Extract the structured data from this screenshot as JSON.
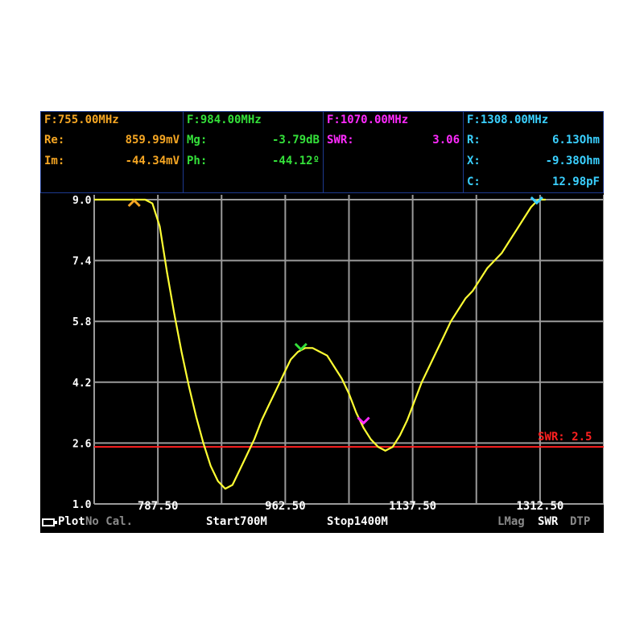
{
  "markers": [
    {
      "id": "m1",
      "color": "#f5a623",
      "freq": "F:755.00MHz",
      "rows": [
        {
          "label": "Re:",
          "value": "859.99mV"
        },
        {
          "label": "Im:",
          "value": "-44.34mV"
        }
      ]
    },
    {
      "id": "m2",
      "color": "#34e03a",
      "freq": "F:984.00MHz",
      "rows": [
        {
          "label": "Mg:",
          "value": "-3.79dB"
        },
        {
          "label": "Ph:",
          "value": "-44.12º"
        }
      ]
    },
    {
      "id": "m3",
      "color": "#ff2bff",
      "freq": "F:1070.00MHz",
      "rows": [
        {
          "label": "SWR:",
          "value": "3.06"
        }
      ]
    },
    {
      "id": "m4",
      "color": "#3ad0ff",
      "freq": "F:1308.00MHz",
      "rows": [
        {
          "label": "R:",
          "value": "6.13Ohm"
        },
        {
          "label": "X:",
          "value": "-9.38Ohm"
        },
        {
          "label": "C:",
          "value": "12.98pF"
        }
      ]
    }
  ],
  "chart_data": {
    "type": "line",
    "xlim": [
      700,
      1400
    ],
    "ylim": [
      1.0,
      9.0
    ],
    "x_ticks": [
      "787.50",
      "962.50",
      "1137.50",
      "1312.50"
    ],
    "y_ticks": [
      "1.0",
      "2.6",
      "4.2",
      "5.8",
      "7.4",
      "9.0"
    ],
    "grid": true,
    "trace_color": "#ffff33",
    "series": [
      {
        "x": [
          700,
          720,
          740,
          760,
          770,
          780,
          790,
          800,
          810,
          820,
          830,
          840,
          850,
          860,
          870,
          880,
          890,
          900,
          910,
          920,
          930,
          940,
          950,
          960,
          970,
          980,
          990,
          1000,
          1010,
          1020,
          1030,
          1040,
          1050,
          1060,
          1070,
          1080,
          1090,
          1100,
          1110,
          1120,
          1130,
          1140,
          1150,
          1160,
          1170,
          1180,
          1190,
          1200,
          1210,
          1220,
          1230,
          1240,
          1250,
          1260,
          1270,
          1280,
          1290,
          1300,
          1310,
          1320
        ],
        "y": [
          9.0,
          9.0,
          9.0,
          9.0,
          9.0,
          8.9,
          8.3,
          7.1,
          6.0,
          5.0,
          4.1,
          3.3,
          2.6,
          2.0,
          1.6,
          1.4,
          1.5,
          1.9,
          2.3,
          2.7,
          3.2,
          3.6,
          4.0,
          4.4,
          4.8,
          5.0,
          5.1,
          5.1,
          5.0,
          4.9,
          4.6,
          4.3,
          3.9,
          3.4,
          3.0,
          2.7,
          2.5,
          2.4,
          2.5,
          2.8,
          3.2,
          3.7,
          4.2,
          4.6,
          5.0,
          5.4,
          5.8,
          6.1,
          6.4,
          6.6,
          6.9,
          7.2,
          7.4,
          7.6,
          7.9,
          8.2,
          8.5,
          8.8,
          9.0,
          9.0
        ]
      }
    ],
    "reference_line": {
      "value": 2.5,
      "label": "SWR: 2.5",
      "color": "#ff2020"
    },
    "marker_positions": [
      {
        "x": 755,
        "y": 9.0,
        "color": "#f5a623",
        "glyph": "^"
      },
      {
        "x": 984,
        "y": 5.0,
        "color": "#34e03a",
        "glyph": "v"
      },
      {
        "x": 1070,
        "y": 3.06,
        "color": "#ff2bff",
        "glyph": "v"
      },
      {
        "x": 1308,
        "y": 8.85,
        "color": "#3ad0ff",
        "glyph": "v"
      }
    ]
  },
  "status_bar": {
    "plot_label": "Plot",
    "cal_label": "No Cal.",
    "start_label": "Start700M",
    "stop_label": "Stop1400M",
    "lmag_label": "LMag",
    "swr_label": "SWR",
    "dtp_label": "DTP",
    "white": "#ffffff",
    "dim": "#8a8a8a"
  }
}
